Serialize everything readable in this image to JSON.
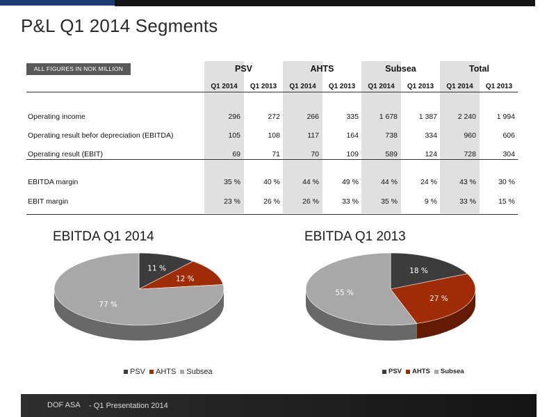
{
  "title": "P&L Q1 2014 Segments",
  "badge": "ALL FIGURES IN NOK MILLION",
  "table": {
    "groups": [
      "PSV",
      "AHTS",
      "Subsea",
      "Total"
    ],
    "subheads": [
      "Q1 2014",
      "Q1 2013",
      "Q1 2014",
      "Q1 2013",
      "Q1 2014",
      "Q1 2013",
      "Q1 2014",
      "Q1 2013"
    ],
    "rows": [
      {
        "label": "Operating income",
        "values": [
          "296",
          "272",
          "266",
          "335",
          "1 678",
          "1 387",
          "2 240",
          "1 994"
        ]
      },
      {
        "label": "Operating result befor depreciation (EBITDA)",
        "values": [
          "105",
          "108",
          "117",
          "164",
          "738",
          "334",
          "960",
          "606"
        ]
      },
      {
        "label": "Operating result (EBIT)",
        "values": [
          "69",
          "71",
          "70",
          "109",
          "589",
          "124",
          "728",
          "304"
        ]
      },
      {
        "label": "EBITDA margin",
        "values": [
          "35 %",
          "40 %",
          "44 %",
          "49 %",
          "44 %",
          "24 %",
          "43 %",
          "30 %"
        ]
      },
      {
        "label": "EBIT margin",
        "values": [
          "23 %",
          "26 %",
          "26 %",
          "33 %",
          "35 %",
          "9 %",
          "33 %",
          "15 %"
        ]
      }
    ]
  },
  "chart_data": [
    {
      "type": "pie",
      "title": "EBITDA Q1 2014",
      "categories": [
        "PSV",
        "AHTS",
        "Subsea"
      ],
      "values": [
        11,
        12,
        77
      ],
      "labels": [
        "11 %",
        "12 %",
        "77 %"
      ],
      "colors": [
        "#3c3c3c",
        "#a02c06",
        "#a8a8a8"
      ],
      "legend": "bottom"
    },
    {
      "type": "pie",
      "title": "EBITDA Q1 2013",
      "categories": [
        "PSV",
        "AHTS",
        "Subsea"
      ],
      "values": [
        18,
        27,
        55
      ],
      "labels": [
        "18 %",
        "27 %",
        "55 %"
      ],
      "colors": [
        "#3c3c3c",
        "#a02c06",
        "#a8a8a8"
      ],
      "legend": "bottom"
    }
  ],
  "footer": {
    "company": "DOF ASA",
    "text": "- Q1 Presentation 2014"
  }
}
